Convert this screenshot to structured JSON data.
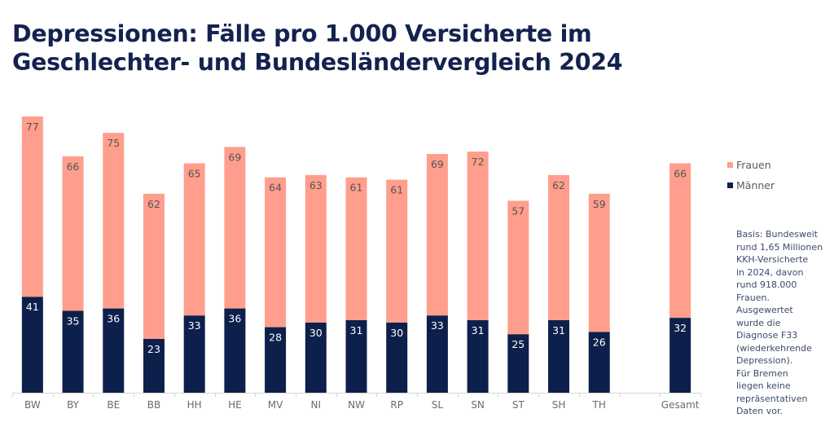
{
  "title_lines": [
    "Depressionen: Fälle pro 1.000 Versicherte im",
    "Geschlechter- und Bundesländervergleich 2024"
  ],
  "colors": {
    "frauen": "#ff9e8c",
    "maenner": "#0d1f4b",
    "title": "#13224f"
  },
  "legend": [
    {
      "label": "Frauen",
      "color": "#ff9e8c"
    },
    {
      "label": "Männer",
      "color": "#0d1f4b"
    }
  ],
  "note_lines": [
    "Basis: Bundesweit",
    "rund 1,65 Millionen",
    "KKH-Versicherte",
    "in 2024, davon",
    "rund 918.000",
    "Frauen.",
    "Ausgewertet",
    "wurde die",
    "Diagnose F33",
    "(wiederkehrende",
    "Depression).",
    "Für Bremen",
    "liegen keine",
    "repräsentativen",
    "Daten vor."
  ],
  "chart_data": {
    "type": "bar",
    "stacked": true,
    "title": "Depressionen: Fälle pro 1.000 Versicherte im Geschlechter- und Bundesländervergleich 2024",
    "xlabel": "",
    "ylabel": "",
    "categories": [
      "BW",
      "BY",
      "BE",
      "BB",
      "HH",
      "HE",
      "MV",
      "NI",
      "NW",
      "RP",
      "SL",
      "SN",
      "ST",
      "SH",
      "TH",
      "",
      "Gesamt"
    ],
    "series": [
      {
        "name": "Männer",
        "values": [
          41,
          35,
          36,
          23,
          33,
          36,
          28,
          30,
          31,
          30,
          33,
          31,
          25,
          31,
          26,
          null,
          32
        ]
      },
      {
        "name": "Frauen",
        "values": [
          77,
          66,
          75,
          62,
          65,
          69,
          64,
          63,
          61,
          61,
          69,
          72,
          57,
          62,
          59,
          null,
          66
        ]
      }
    ],
    "ylim": [
      0,
      118
    ],
    "grid": false,
    "legend_position": "right"
  }
}
